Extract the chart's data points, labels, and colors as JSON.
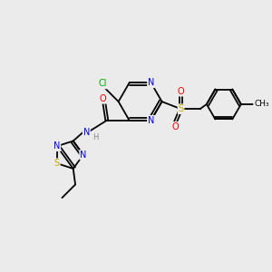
{
  "bg_color": "#ebebeb",
  "atom_colors": {
    "C": "#000000",
    "N": "#0000ee",
    "O": "#ee0000",
    "S": "#ccaa00",
    "Cl": "#00aa00",
    "H": "#888888"
  },
  "bond_color": "#000000",
  "font_size_atom": 7.0,
  "fig_size": [
    3.0,
    3.0
  ],
  "dpi": 100
}
